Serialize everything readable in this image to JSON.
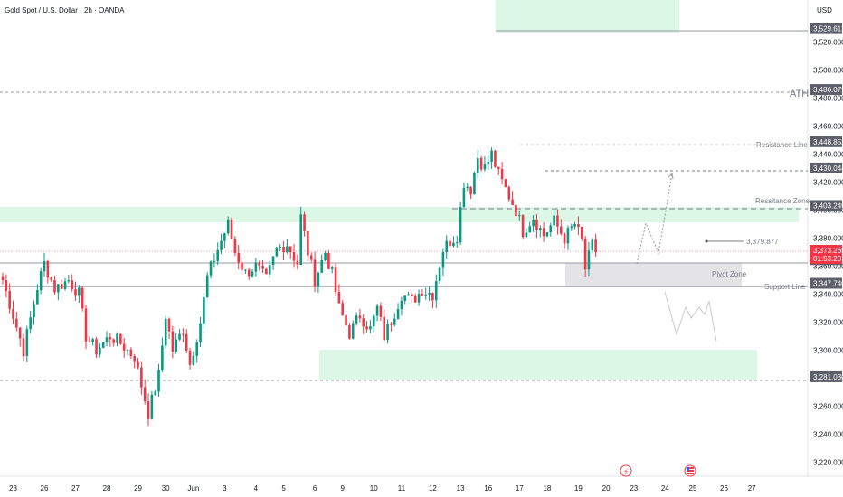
{
  "header": {
    "title": "Gold Spot / U.S. Dollar · 2h · OANDA",
    "currency": "USD"
  },
  "chart_data": {
    "type": "candlestick",
    "ylim": [
      3210,
      3550
    ],
    "y_ticks": [
      3220,
      3240,
      3260,
      3280,
      3300,
      3320,
      3340,
      3360,
      3380,
      3400,
      3420,
      3440,
      3460,
      3480,
      3500,
      3520
    ],
    "x_ticks": [
      {
        "label": "23",
        "i": 3
      },
      {
        "label": "26",
        "i": 12
      },
      {
        "label": "27",
        "i": 21
      },
      {
        "label": "28",
        "i": 30
      },
      {
        "label": "29",
        "i": 39
      },
      {
        "label": "30",
        "i": 47
      },
      {
        "label": "Jun",
        "i": 55
      },
      {
        "label": "3",
        "i": 64
      },
      {
        "label": "4",
        "i": 73
      },
      {
        "label": "5",
        "i": 81
      },
      {
        "label": "6",
        "i": 90
      },
      {
        "label": "9",
        "i": 98
      },
      {
        "label": "10",
        "i": 107
      },
      {
        "label": "11",
        "i": 115
      },
      {
        "label": "12",
        "i": 124
      },
      {
        "label": "13",
        "i": 132
      },
      {
        "label": "16",
        "i": 140
      },
      {
        "label": "17",
        "i": 149
      },
      {
        "label": "18",
        "i": 157
      },
      {
        "label": "19",
        "i": 166
      },
      {
        "label": "20",
        "i": 174
      },
      {
        "label": "23",
        "i": 182
      },
      {
        "label": "24",
        "i": 191
      },
      {
        "label": "25",
        "i": 199
      },
      {
        "label": "26",
        "i": 208
      },
      {
        "label": "27",
        "i": 216
      }
    ],
    "levels": [
      {
        "name": "ATH",
        "value": 3486.079,
        "label": "3,486.079"
      },
      {
        "name": "Resistance Line",
        "value": 3448.852,
        "label": "3,448.852"
      },
      {
        "name": "",
        "value": 3430.044,
        "label": "3,430.044"
      },
      {
        "name": "Ressitance Zone",
        "value": 3403.249,
        "label": "3,403.249"
      },
      {
        "name": "",
        "value": 3364.652,
        "label": "3,364.652"
      },
      {
        "name": "Support Line",
        "value": 3347.74,
        "label": "3,347.740"
      },
      {
        "name": "",
        "value": 3281.03,
        "label": "3,281.030"
      },
      {
        "name": "",
        "value": 3529.612,
        "label": "3,529.612"
      }
    ],
    "current_price": {
      "value": 3373.265,
      "label": "3,373.265",
      "countdown": "01:53:20"
    },
    "marker_price": "3,379.877",
    "pivot_zone_label": "Pivot Zone",
    "zones": [
      {
        "name": "top-zone",
        "y0": 3530,
        "y1": 3550
      },
      {
        "name": "resistance-zone",
        "y0": 3394,
        "y1": 3402
      },
      {
        "name": "pivot-zone",
        "y0": 3347.7,
        "y1": 3364.6
      },
      {
        "name": "demand-zone",
        "y0": 3284,
        "y1": 3302
      }
    ],
    "colors": {
      "up": "#089981",
      "down": "#f23645",
      "zone": "#dcf7e6",
      "pivot": "#e4e4e6",
      "price": "#f23645"
    },
    "waypoints": [
      [
        0,
        3350
      ],
      [
        3,
        3325
      ],
      [
        6,
        3300
      ],
      [
        10,
        3345
      ],
      [
        12,
        3362
      ],
      [
        15,
        3344
      ],
      [
        19,
        3350
      ],
      [
        22,
        3340
      ],
      [
        24,
        3310
      ],
      [
        27,
        3300
      ],
      [
        31,
        3310
      ],
      [
        34,
        3305
      ],
      [
        38,
        3295
      ],
      [
        40,
        3275
      ],
      [
        42,
        3255
      ],
      [
        45,
        3282
      ],
      [
        47,
        3325
      ],
      [
        49,
        3300
      ],
      [
        52,
        3315
      ],
      [
        54,
        3290
      ],
      [
        57,
        3320
      ],
      [
        59,
        3352
      ],
      [
        62,
        3372
      ],
      [
        65,
        3390
      ],
      [
        67,
        3370
      ],
      [
        70,
        3355
      ],
      [
        73,
        3360
      ],
      [
        76,
        3350
      ],
      [
        79,
        3372
      ],
      [
        82,
        3376
      ],
      [
        85,
        3362
      ],
      [
        86,
        3395
      ],
      [
        88,
        3370
      ],
      [
        90,
        3350
      ],
      [
        93,
        3370
      ],
      [
        95,
        3354
      ],
      [
        97,
        3330
      ],
      [
        100,
        3312
      ],
      [
        103,
        3325
      ],
      [
        106,
        3315
      ],
      [
        108,
        3330
      ],
      [
        110,
        3310
      ],
      [
        113,
        3327
      ],
      [
        115,
        3340
      ],
      [
        118,
        3335
      ],
      [
        121,
        3343
      ],
      [
        124,
        3340
      ],
      [
        127,
        3372
      ],
      [
        129,
        3378
      ],
      [
        131,
        3382
      ],
      [
        133,
        3420
      ],
      [
        135,
        3415
      ],
      [
        137,
        3438
      ],
      [
        139,
        3430
      ],
      [
        141,
        3440
      ],
      [
        143,
        3425
      ],
      [
        146,
        3410
      ],
      [
        148,
        3400
      ],
      [
        150,
        3385
      ],
      [
        153,
        3395
      ],
      [
        156,
        3382
      ],
      [
        159,
        3392
      ],
      [
        162,
        3380
      ],
      [
        165,
        3390
      ],
      [
        167,
        3378
      ],
      [
        168,
        3358
      ],
      [
        170,
        3375
      ],
      [
        171,
        3370
      ]
    ]
  }
}
